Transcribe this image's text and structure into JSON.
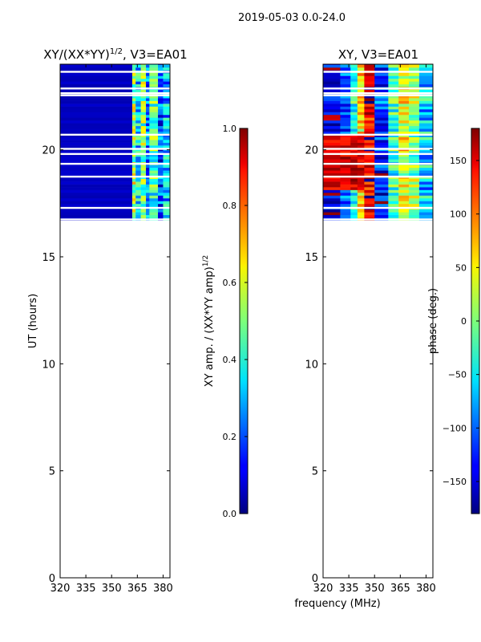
{
  "figure_title": "2019-05-03 0.0-24.0",
  "chart_data": [
    {
      "type": "heatmap",
      "panel": "left",
      "title": "XY/(XX*YY)",
      "title_superscript": "1/2",
      "title_suffix": ", V3=EA01",
      "xlabel": "",
      "ylabel": "UT (hours)",
      "xlim": [
        320,
        384
      ],
      "ylim": [
        0,
        24
      ],
      "xticks": [
        320,
        335,
        350,
        365,
        380
      ],
      "yticks": [
        0,
        5,
        10,
        15,
        20
      ],
      "data_time_range_hours": [
        16.7,
        24.0
      ],
      "colormap": "jet",
      "colorbar": {
        "label": "XY amp. / (XX*YY amp)",
        "label_superscript": "1/2",
        "range": [
          0.0,
          1.0
        ],
        "ticks": [
          "0.0",
          "0.2",
          "0.4",
          "0.6",
          "0.8",
          "1.0"
        ]
      },
      "bands": [
        {
          "f": [
            320,
            362
          ],
          "value": 0.05
        },
        {
          "f": [
            362,
            364
          ],
          "value": 0.55
        },
        {
          "f": [
            364,
            367
          ],
          "value": 0.35
        },
        {
          "f": [
            367,
            370
          ],
          "value": 0.5
        },
        {
          "f": [
            370,
            372
          ],
          "value": 0.25
        },
        {
          "f": [
            372,
            377
          ],
          "value": 0.45
        },
        {
          "f": [
            377,
            380
          ],
          "value": 0.2
        },
        {
          "f": [
            380,
            384
          ],
          "value": 0.3
        }
      ]
    },
    {
      "type": "heatmap",
      "panel": "right",
      "title": "XY, V3=EA01",
      "xlabel": "frequency (MHz)",
      "ylabel": "",
      "xlim": [
        320,
        384
      ],
      "ylim": [
        0,
        24
      ],
      "xticks": [
        320,
        335,
        350,
        365,
        380
      ],
      "yticks": [
        0,
        5,
        10,
        15,
        20
      ],
      "data_time_range_hours": [
        16.7,
        24.0
      ],
      "colormap": "jet",
      "colorbar": {
        "label": "phase (deg.)",
        "range": [
          -180,
          180
        ],
        "ticks": [
          "−150",
          "−100",
          "−50",
          "0",
          "50",
          "100",
          "150"
        ]
      },
      "phase_bands_deg": [
        {
          "f": [
            320,
            330
          ],
          "value": -150
        },
        {
          "f": [
            330,
            336
          ],
          "value": -100
        },
        {
          "f": [
            336,
            340
          ],
          "value": -40
        },
        {
          "f": [
            340,
            344
          ],
          "value": 60
        },
        {
          "f": [
            344,
            350
          ],
          "value": 150
        },
        {
          "f": [
            350,
            358
          ],
          "value": -120
        },
        {
          "f": [
            358,
            364
          ],
          "value": -20
        },
        {
          "f": [
            364,
            370
          ],
          "value": 40
        },
        {
          "f": [
            370,
            376
          ],
          "value": 10
        },
        {
          "f": [
            376,
            384
          ],
          "value": -60
        }
      ]
    }
  ]
}
